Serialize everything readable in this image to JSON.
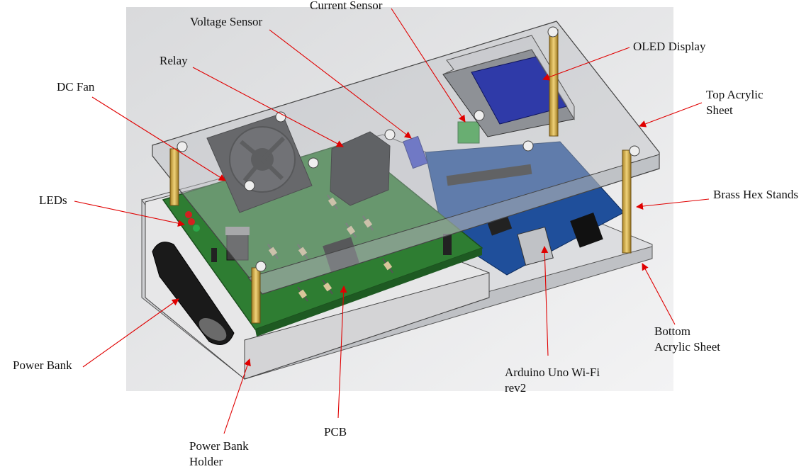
{
  "labels": {
    "current_sensor": "Current Sensor",
    "voltage_sensor": "Voltage Sensor",
    "relay": "Relay",
    "oled_display": "OLED Display",
    "dc_fan": "DC Fan",
    "top_acrylic_1": "Top Acrylic",
    "top_acrylic_2": "Sheet",
    "leds": "LEDs",
    "brass_hex_stands": "Brass Hex Stands",
    "bottom_acrylic_1": "Bottom",
    "bottom_acrylic_2": "Acrylic Sheet",
    "power_bank": "Power Bank",
    "arduino_1": "Arduino Uno Wi-Fi",
    "arduino_2": "rev2",
    "pcb": "PCB",
    "power_bank_holder_1": "Power Bank",
    "power_bank_holder_2": "Holder"
  },
  "colors": {
    "arrow": "#e00000",
    "pcb": "#2e7d32",
    "arduino": "#1f4f9b",
    "acrylic": "#c9ccd0",
    "brass": "#d8b24a",
    "background": "#ececee"
  }
}
